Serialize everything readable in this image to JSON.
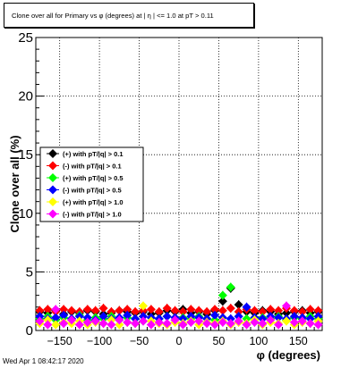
{
  "chart_data": {
    "type": "scatter",
    "title": "Clone  over all for Primary vs φ (degrees) at | η | <= 1.0 at pT > 0.11",
    "xlabel": "φ (degrees)",
    "ylabel": "Clone  over all (%)",
    "xlim": [
      -180,
      180
    ],
    "ylim": [
      0,
      25
    ],
    "x_ticks": [
      -150,
      -100,
      -50,
      0,
      50,
      100,
      150
    ],
    "y_ticks": [
      0,
      5,
      10,
      15,
      20,
      25
    ],
    "grid": true,
    "legend_position": "middle-left",
    "series": [
      {
        "name": "(+) with pT/|q| > 0.1",
        "color": "#000000",
        "x": [
          -175,
          -165,
          -155,
          -145,
          -135,
          -125,
          -115,
          -105,
          -95,
          -85,
          -75,
          -65,
          -55,
          -45,
          -35,
          -25,
          -15,
          -5,
          5,
          15,
          25,
          35,
          45,
          55,
          65,
          75,
          85,
          95,
          105,
          115,
          125,
          135,
          145,
          155,
          165,
          175
        ],
        "y": [
          1.6,
          1.5,
          1.7,
          1.4,
          1.6,
          1.5,
          1.7,
          1.6,
          1.4,
          1.5,
          1.7,
          1.6,
          1.5,
          1.6,
          1.4,
          1.5,
          1.7,
          1.6,
          1.8,
          1.5,
          1.6,
          1.4,
          1.7,
          2.5,
          3.6,
          2.2,
          1.6,
          1.5,
          1.7,
          1.6,
          1.4,
          1.5,
          1.6,
          1.7,
          1.5,
          1.6
        ]
      },
      {
        "name": "(-) with pT/|q| > 0.1",
        "color": "#ff0000",
        "x": [
          -175,
          -165,
          -155,
          -145,
          -135,
          -125,
          -115,
          -105,
          -95,
          -85,
          -75,
          -65,
          -55,
          -45,
          -35,
          -25,
          -15,
          -5,
          5,
          15,
          25,
          35,
          45,
          55,
          65,
          75,
          85,
          95,
          105,
          115,
          125,
          135,
          145,
          155,
          165,
          175
        ],
        "y": [
          1.7,
          1.8,
          1.6,
          1.8,
          1.7,
          1.6,
          1.8,
          1.7,
          1.9,
          1.6,
          1.7,
          1.8,
          1.6,
          1.7,
          1.8,
          1.6,
          1.9,
          1.7,
          1.6,
          1.8,
          1.7,
          1.6,
          1.8,
          1.7,
          1.9,
          1.6,
          1.8,
          1.7,
          1.6,
          1.8,
          1.7,
          1.9,
          1.7,
          1.6,
          1.8,
          1.7
        ]
      },
      {
        "name": "(+) with pT/|q| > 0.5",
        "color": "#00ff00",
        "x": [
          -175,
          -165,
          -155,
          -145,
          -135,
          -125,
          -115,
          -105,
          -95,
          -85,
          -75,
          -65,
          -55,
          -45,
          -35,
          -25,
          -15,
          -5,
          5,
          15,
          25,
          35,
          45,
          55,
          65,
          75,
          85,
          95,
          105,
          115,
          125,
          135,
          145,
          155,
          165,
          175
        ],
        "y": [
          1.0,
          1.2,
          0.9,
          1.1,
          1.0,
          1.3,
          0.9,
          1.1,
          1.0,
          1.2,
          0.9,
          1.1,
          1.0,
          0.8,
          1.1,
          1.0,
          1.2,
          0.9,
          1.1,
          1.0,
          1.2,
          1.0,
          0.9,
          3.0,
          3.7,
          1.2,
          1.0,
          0.9,
          1.1,
          1.0,
          1.2,
          0.9,
          1.1,
          1.0,
          1.2,
          1.0
        ]
      },
      {
        "name": "(-) with pT/|q| > 0.5",
        "color": "#0000ff",
        "x": [
          -175,
          -165,
          -155,
          -145,
          -135,
          -125,
          -115,
          -105,
          -95,
          -85,
          -75,
          -65,
          -55,
          -45,
          -35,
          -25,
          -15,
          -5,
          5,
          15,
          25,
          35,
          45,
          55,
          65,
          75,
          85,
          95,
          105,
          115,
          125,
          135,
          145,
          155,
          165,
          175
        ],
        "y": [
          1.2,
          1.0,
          1.1,
          1.3,
          1.0,
          1.2,
          1.1,
          0.9,
          1.2,
          1.0,
          1.1,
          1.3,
          1.0,
          1.2,
          1.1,
          1.0,
          1.2,
          1.1,
          1.0,
          1.2,
          1.1,
          1.0,
          1.3,
          1.1,
          1.0,
          1.2,
          2.0,
          1.1,
          1.0,
          1.2,
          1.1,
          1.0,
          1.2,
          1.1,
          1.0,
          1.2
        ]
      },
      {
        "name": "(+) with pT/|q| > 1.0",
        "color": "#ffff00",
        "x": [
          -175,
          -165,
          -155,
          -145,
          -135,
          -125,
          -115,
          -105,
          -95,
          -85,
          -75,
          -65,
          -55,
          -45,
          -35,
          -25,
          -15,
          -5,
          5,
          15,
          25,
          35,
          45,
          55,
          65,
          75,
          85,
          95,
          105,
          115,
          125,
          135,
          145,
          155,
          165,
          175
        ],
        "y": [
          0.6,
          0.9,
          0.5,
          0.7,
          0.6,
          0.8,
          0.5,
          0.7,
          0.6,
          0.9,
          0.5,
          0.7,
          0.6,
          2.1,
          0.8,
          0.6,
          0.5,
          0.7,
          0.6,
          0.8,
          0.5,
          0.7,
          0.6,
          0.8,
          0.5,
          0.7,
          0.6,
          0.9,
          0.5,
          0.7,
          0.6,
          0.8,
          0.5,
          0.7,
          0.6,
          0.8
        ]
      },
      {
        "name": "(-) with pT/|q| > 1.0",
        "color": "#ff00ff",
        "x": [
          -175,
          -165,
          -155,
          -145,
          -135,
          -125,
          -115,
          -105,
          -95,
          -85,
          -75,
          -65,
          -55,
          -45,
          -35,
          -25,
          -15,
          -5,
          5,
          15,
          25,
          35,
          45,
          55,
          65,
          75,
          85,
          95,
          105,
          115,
          125,
          135,
          145,
          155,
          165,
          175
        ],
        "y": [
          0.8,
          0.5,
          1.8,
          0.6,
          0.9,
          0.5,
          0.7,
          0.8,
          0.6,
          0.5,
          0.9,
          0.7,
          0.6,
          0.8,
          0.5,
          0.7,
          0.6,
          0.9,
          0.5,
          0.7,
          0.8,
          0.6,
          0.5,
          0.7,
          0.6,
          0.8,
          0.5,
          0.7,
          0.6,
          0.9,
          0.5,
          2.1,
          0.7,
          0.8,
          0.6,
          0.5
        ]
      }
    ]
  },
  "footer": {
    "timestamp": "Wed Apr  1 08:42:17 2020"
  }
}
